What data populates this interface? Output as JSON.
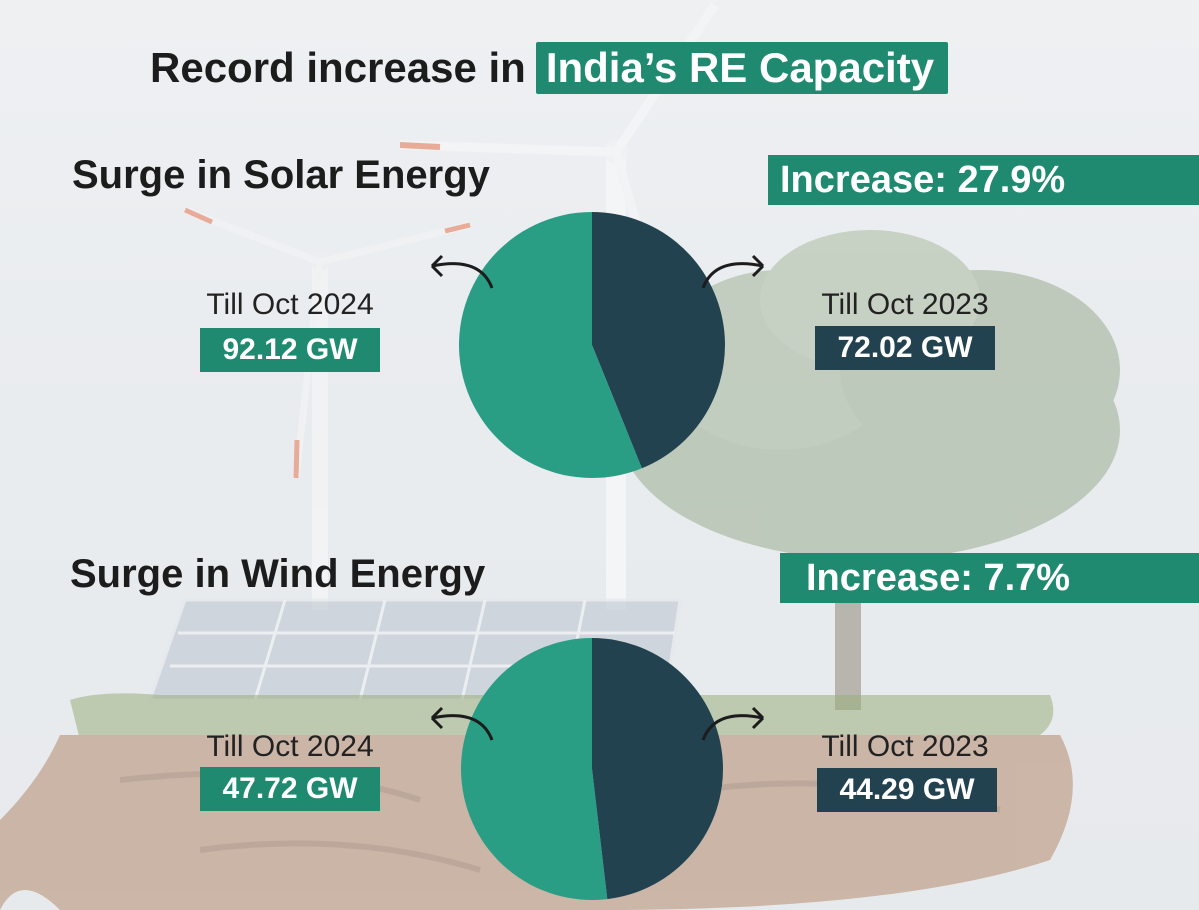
{
  "headline": {
    "prefix": "Record increase in",
    "highlight": "India’s RE Capacity"
  },
  "colors": {
    "accent": "#1f8a6f",
    "pie_new": "#2a9d85",
    "pie_old": "#23424f",
    "badge_old": "#23424f"
  },
  "chart_data": [
    {
      "type": "pie",
      "title": "Surge in Solar Energy",
      "increase_label": "Increase: 27.9%",
      "slices": [
        {
          "label": "Till Oct 2024",
          "value": 92.12,
          "unit": "GW",
          "value_text": "92.12 GW"
        },
        {
          "label": "Till Oct 2023",
          "value": 72.02,
          "unit": "GW",
          "value_text": "72.02 GW"
        }
      ]
    },
    {
      "type": "pie",
      "title": "Surge in Wind Energy",
      "increase_label": "Increase: 7.7%",
      "slices": [
        {
          "label": "Till Oct 2024",
          "value": 47.72,
          "unit": "GW",
          "value_text": "47.72 GW"
        },
        {
          "label": "Till Oct 2023",
          "value": 44.29,
          "unit": "GW",
          "value_text": "44.29 GW"
        }
      ]
    }
  ]
}
